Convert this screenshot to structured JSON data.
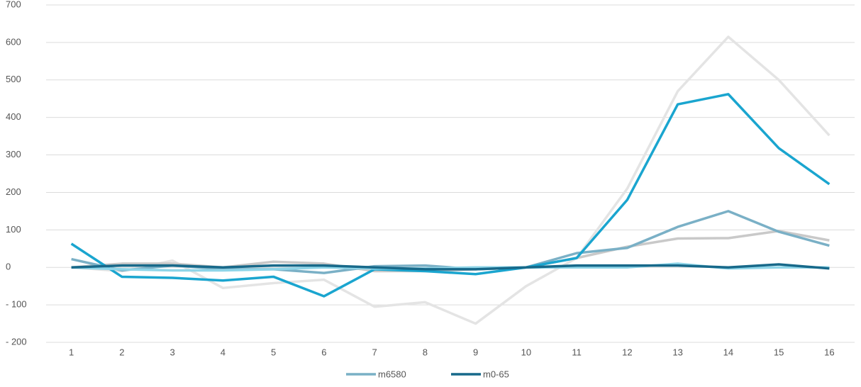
{
  "chart_data": {
    "type": "line",
    "categories": [
      "1",
      "2",
      "3",
      "4",
      "5",
      "6",
      "7",
      "8",
      "9",
      "10",
      "11",
      "12",
      "13",
      "14",
      "15",
      "16"
    ],
    "series": [
      {
        "color": "#e4e4e4",
        "values": [
          0,
          -10,
          18,
          -55,
          -42,
          -33,
          -105,
          -93,
          -150,
          -50,
          25,
          210,
          470,
          615,
          500,
          352
        ]
      },
      {
        "color": "#c9c9c9",
        "values": [
          0,
          10,
          10,
          0,
          15,
          10,
          -10,
          -10,
          -5,
          0,
          25,
          55,
          77,
          78,
          97,
          72
        ]
      },
      {
        "name": "m6580",
        "color": "#7ab0c6",
        "values": [
          22,
          -8,
          5,
          -5,
          -5,
          -15,
          3,
          5,
          -5,
          0,
          38,
          52,
          108,
          150,
          95,
          58
        ]
      },
      {
        "color": "#1aa5cf",
        "values": [
          63,
          -25,
          -28,
          -35,
          -25,
          -77,
          -5,
          -10,
          -18,
          0,
          25,
          180,
          435,
          462,
          318,
          222
        ]
      },
      {
        "color": "#8fd5e8",
        "values": [
          0,
          -5,
          -8,
          -8,
          -5,
          0,
          -3,
          -3,
          0,
          0,
          0,
          0,
          10,
          -3,
          0,
          0
        ]
      },
      {
        "name": "m0-65",
        "color": "#17698a",
        "values": [
          0,
          5,
          5,
          0,
          5,
          5,
          0,
          -5,
          -5,
          0,
          5,
          5,
          5,
          0,
          8,
          -3
        ]
      }
    ],
    "ylim": [
      -200,
      700
    ],
    "yticks": [
      {
        "value": -200,
        "label": "- 200"
      },
      {
        "value": -100,
        "label": "- 100"
      },
      0,
      100,
      200,
      300,
      400,
      500,
      600,
      700
    ],
    "grid": true
  }
}
